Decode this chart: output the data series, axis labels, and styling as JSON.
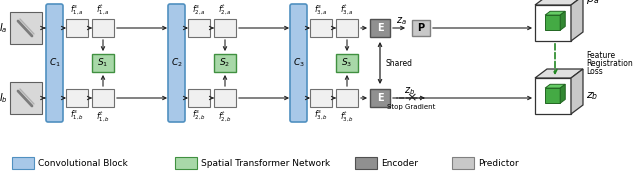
{
  "fig_width": 6.4,
  "fig_height": 1.77,
  "dpi": 100,
  "bg_color": "#ffffff",
  "blue_color": "#a8c8e8",
  "blue_edge": "#5090c0",
  "green_color": "#a8d8a8",
  "green_edge": "#409040",
  "gray_dark": "#909090",
  "gray_dark_edge": "#505050",
  "gray_light": "#c8c8c8",
  "gray_light_edge": "#808080",
  "feat_color": "#f0f0f0",
  "feat_edge": "#707070",
  "arrow_color": "#222222",
  "legend_items": [
    {
      "label": "Convolutional Block",
      "color": "#a8c8e8",
      "edge": "#5090c0"
    },
    {
      "label": "Spatial Transformer Network",
      "color": "#a8d8a8",
      "edge": "#409040"
    },
    {
      "label": "Encoder",
      "color": "#909090",
      "edge": "#505050"
    },
    {
      "label": "Predictor",
      "color": "#c8c8c8",
      "edge": "#808080"
    }
  ]
}
